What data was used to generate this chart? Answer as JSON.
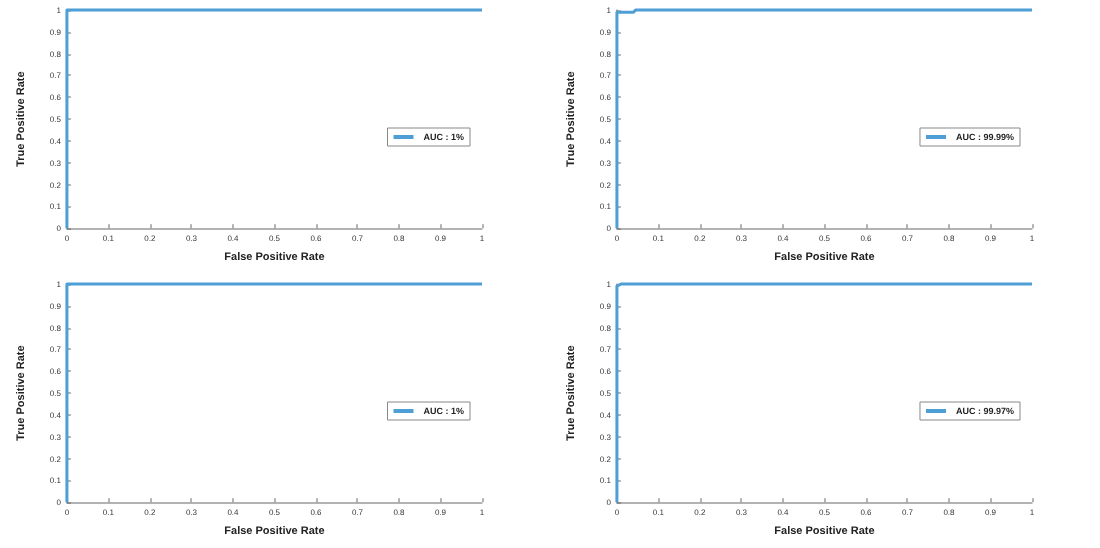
{
  "chart_data": [
    {
      "type": "line",
      "xlabel": "False Positive Rate",
      "ylabel": "True Positive Rate",
      "xlim": [
        0,
        1
      ],
      "ylim": [
        0,
        1
      ],
      "xticks": [
        0,
        0.1,
        0.2,
        0.3,
        0.4,
        0.5,
        0.6,
        0.7,
        0.8,
        0.9,
        1
      ],
      "yticks": [
        0,
        0.1,
        0.2,
        0.3,
        0.4,
        0.5,
        0.6,
        0.7,
        0.8,
        0.9,
        1
      ],
      "grid": false,
      "legend": "right",
      "series": [
        {
          "name": "AUC : 1%",
          "color": "#4d9fd6",
          "x": [
            0,
            0,
            0,
            0.5,
            1
          ],
          "values": [
            0,
            0.5,
            1,
            1,
            1
          ]
        }
      ]
    },
    {
      "type": "line",
      "xlabel": "False Positive Rate",
      "ylabel": "True Positive Rate",
      "xlim": [
        0,
        1
      ],
      "ylim": [
        0,
        1
      ],
      "xticks": [
        0,
        0.1,
        0.2,
        0.3,
        0.4,
        0.5,
        0.6,
        0.7,
        0.8,
        0.9,
        1
      ],
      "yticks": [
        0,
        0.1,
        0.2,
        0.3,
        0.4,
        0.5,
        0.6,
        0.7,
        0.8,
        0.9,
        1
      ],
      "grid": false,
      "legend": "right",
      "series": [
        {
          "name": "AUC : 99.99%",
          "color": "#4d9fd6",
          "x": [
            0,
            0,
            0.04,
            0.045,
            1
          ],
          "values": [
            0,
            0.99,
            0.99,
            1,
            1
          ]
        }
      ]
    },
    {
      "type": "line",
      "xlabel": "False Positive Rate",
      "ylabel": "True Positive Rate",
      "xlim": [
        0,
        1
      ],
      "ylim": [
        0,
        1
      ],
      "xticks": [
        0,
        0.1,
        0.2,
        0.3,
        0.4,
        0.5,
        0.6,
        0.7,
        0.8,
        0.9,
        1
      ],
      "yticks": [
        0,
        0.1,
        0.2,
        0.3,
        0.4,
        0.5,
        0.6,
        0.7,
        0.8,
        0.9,
        1
      ],
      "grid": false,
      "legend": "right",
      "series": [
        {
          "name": "AUC : 1%",
          "color": "#4d9fd6",
          "x": [
            0,
            0,
            0,
            0.5,
            1
          ],
          "values": [
            0,
            0.5,
            1,
            1,
            1
          ]
        }
      ]
    },
    {
      "type": "line",
      "xlabel": "False Positive Rate",
      "ylabel": "True Positive Rate",
      "xlim": [
        0,
        1
      ],
      "ylim": [
        0,
        1
      ],
      "xticks": [
        0,
        0.1,
        0.2,
        0.3,
        0.4,
        0.5,
        0.6,
        0.7,
        0.8,
        0.9,
        1
      ],
      "yticks": [
        0,
        0.1,
        0.2,
        0.3,
        0.4,
        0.5,
        0.6,
        0.7,
        0.8,
        0.9,
        1
      ],
      "grid": false,
      "legend": "right",
      "series": [
        {
          "name": "AUC : 99.97%",
          "color": "#4d9fd6",
          "x": [
            0,
            0,
            0.01,
            1
          ],
          "values": [
            0,
            0.99,
            1,
            1
          ]
        }
      ]
    }
  ]
}
